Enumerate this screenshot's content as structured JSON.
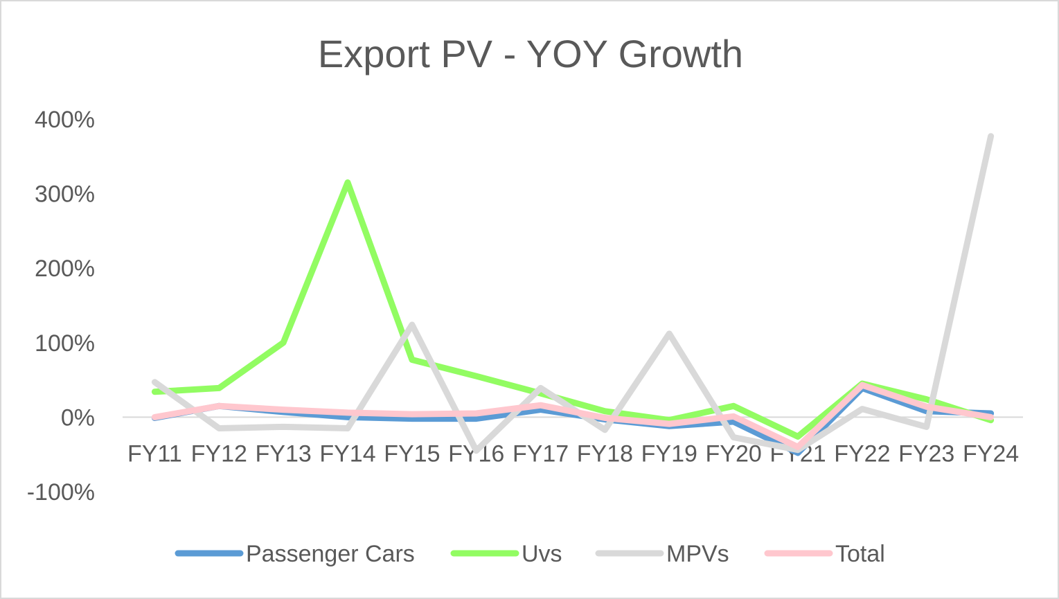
{
  "chart_data": {
    "type": "line",
    "title": "Export PV - YOY Growth",
    "xlabel": "",
    "ylabel": "",
    "categories": [
      "FY11",
      "FY12",
      "FY13",
      "FY14",
      "FY15",
      "FY16",
      "FY17",
      "FY18",
      "FY19",
      "FY20",
      "FY21",
      "FY22",
      "FY23",
      "FY24"
    ],
    "ylim": [
      -100,
      400
    ],
    "yticks": [
      400,
      300,
      200,
      100,
      0,
      -100
    ],
    "ytick_labels": [
      "400%",
      "300%",
      "200%",
      "100%",
      "0%",
      "-100%"
    ],
    "grid": false,
    "zero_line": true,
    "legend_position": "bottom",
    "series": [
      {
        "name": "Passenger Cars",
        "color": "#5b9bd5",
        "values": [
          -1,
          15,
          7,
          0,
          -2,
          -2,
          10,
          -3,
          -12,
          -6,
          -48,
          39,
          8,
          5
        ]
      },
      {
        "name": "Uvs",
        "color": "#92fc62",
        "values": [
          34,
          39,
          100,
          315,
          77,
          55,
          32,
          8,
          -4,
          15,
          -26,
          45,
          24,
          -4
        ]
      },
      {
        "name": "MPVs",
        "color": "#d9d9d9",
        "values": [
          47,
          -15,
          -13,
          -15,
          124,
          -45,
          39,
          -17,
          112,
          -27,
          -44,
          11,
          -13,
          377
        ]
      },
      {
        "name": "Total",
        "color": "#ffc7ce",
        "values": [
          0,
          15,
          10,
          6,
          4,
          5,
          16,
          -1,
          -9,
          1,
          -40,
          43,
          14,
          0
        ]
      }
    ]
  }
}
